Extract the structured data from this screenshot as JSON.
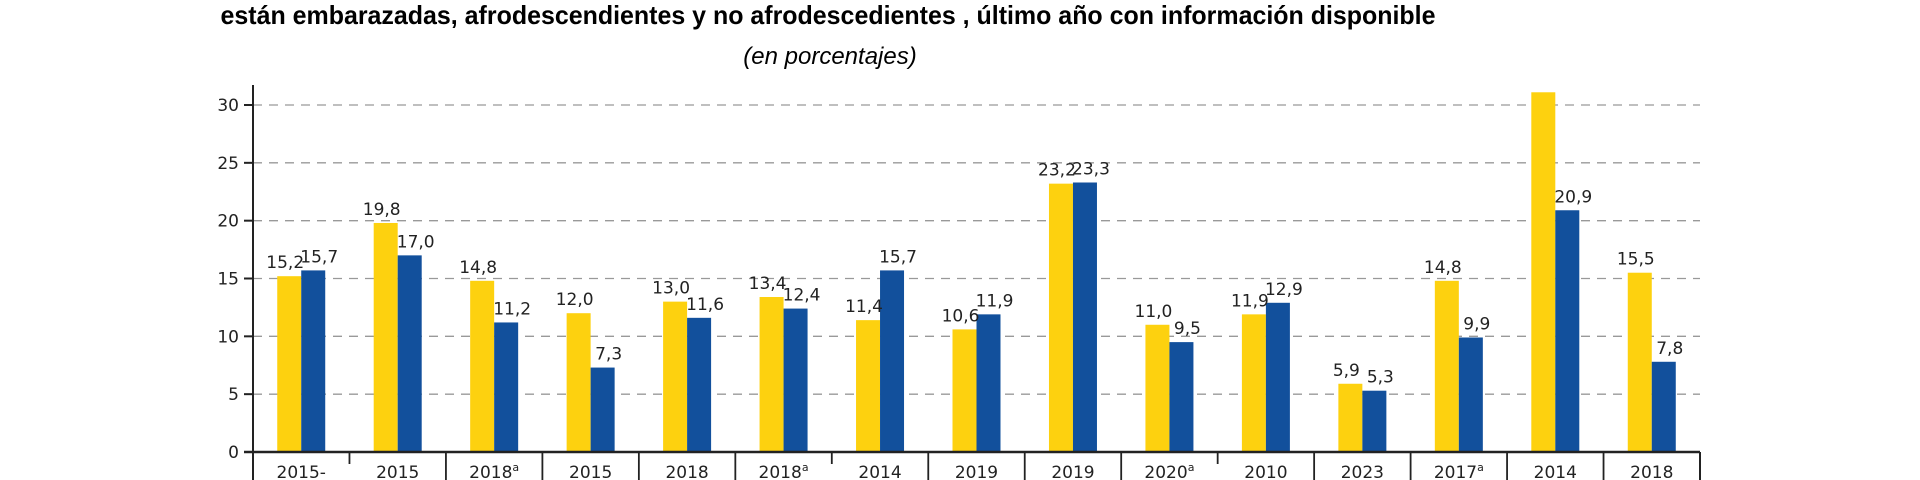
{
  "chart_data": {
    "type": "bar",
    "title": "están embarazadas, afrodescendientes y no afrodescedientes , último año con información disponible",
    "subtitle": "(en porcentajes)",
    "xlabel": "",
    "ylabel": "",
    "ylim": [
      0,
      30
    ],
    "yticks": [
      "0",
      "5",
      "10",
      "15",
      "20",
      "25",
      "30"
    ],
    "grid": "horizontal-dashed",
    "categories": [
      {
        "label": "2015-",
        "note": ""
      },
      {
        "label": "2015",
        "note": ""
      },
      {
        "label": "2018",
        "note": "a"
      },
      {
        "label": "2015",
        "note": ""
      },
      {
        "label": "2018",
        "note": ""
      },
      {
        "label": "2018",
        "note": "a"
      },
      {
        "label": "2014",
        "note": ""
      },
      {
        "label": "2019",
        "note": ""
      },
      {
        "label": "2019",
        "note": ""
      },
      {
        "label": "2020",
        "note": "a"
      },
      {
        "label": "2010",
        "note": ""
      },
      {
        "label": "2023",
        "note": ""
      },
      {
        "label": "2017",
        "note": "a"
      },
      {
        "label": "2014",
        "note": ""
      },
      {
        "label": "2018",
        "note": ""
      }
    ],
    "group_dividers_short_after": [
      1,
      6,
      10
    ],
    "series": [
      {
        "color": "#FDD10F",
        "values": [
          15.2,
          19.8,
          14.8,
          12.0,
          13.0,
          13.4,
          11.4,
          10.6,
          23.2,
          11.0,
          11.9,
          5.9,
          14.8,
          31.1,
          15.5
        ],
        "labels": [
          "15,2",
          "19,8",
          "14,8",
          "12,0",
          "13,0",
          "13,4",
          "11,4",
          "10,6",
          "23,2",
          "11,0",
          "11,9",
          "5,9",
          "14,8",
          "",
          "15,5"
        ]
      },
      {
        "color": "#12509C",
        "values": [
          15.7,
          17.0,
          11.2,
          7.3,
          11.6,
          12.4,
          15.7,
          11.9,
          23.3,
          9.5,
          12.9,
          5.3,
          9.9,
          20.9,
          7.8
        ],
        "labels": [
          "15,7",
          "17,0",
          "11,2",
          "7,3",
          "11,6",
          "12,4",
          "15,7",
          "11,9",
          "23,3",
          "9,5",
          "12,9",
          "5,3",
          "9,9",
          "20,9",
          "7,8"
        ]
      }
    ]
  }
}
